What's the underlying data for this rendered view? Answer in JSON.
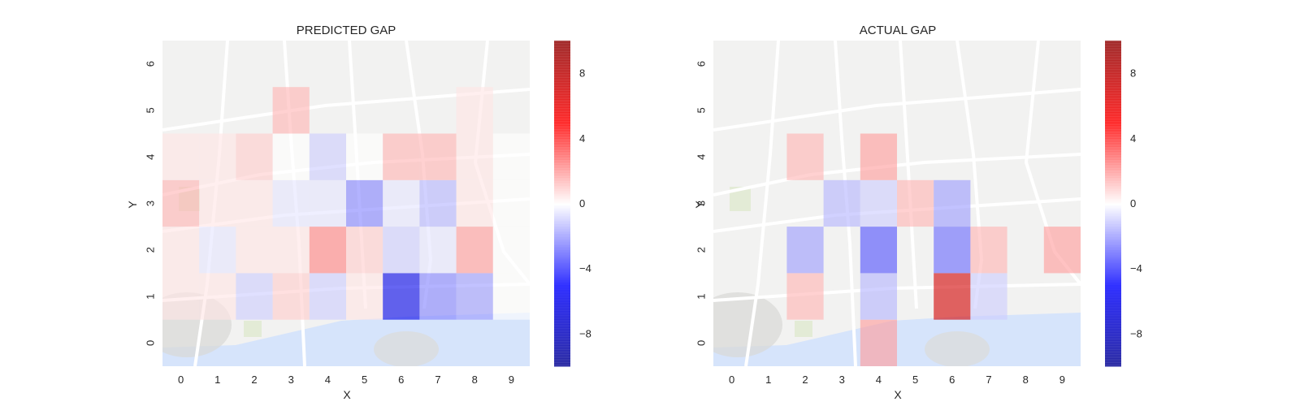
{
  "colors": {
    "map_background": "#f2f2f1",
    "map_water": "#d6e4fb",
    "map_road": "#ffffff",
    "colormap_low": "#00008f",
    "colormap_mid": "#ffffff",
    "colormap_high": "#8f0000"
  },
  "chart_data": [
    {
      "type": "heatmap",
      "title": "PREDICTED GAP",
      "xlabel": "X",
      "ylabel": "Y",
      "x_ticks": [
        "0",
        "1",
        "2",
        "3",
        "4",
        "5",
        "6",
        "7",
        "8",
        "9"
      ],
      "y_ticks": [
        "0",
        "1",
        "2",
        "3",
        "4",
        "5",
        "6"
      ],
      "colormap": "seismic",
      "vmin": -10,
      "vmax": 10,
      "colorbar_ticks": [
        "8",
        "4",
        "0",
        "−4",
        "−8"
      ],
      "colorbar_values": [
        8,
        4,
        0,
        -4,
        -8
      ],
      "background": "street map",
      "grid": false,
      "cells": [
        [
          0,
          1,
          0.5
        ],
        [
          1,
          1,
          0.5
        ],
        [
          2,
          1,
          -1
        ],
        [
          3,
          1,
          1
        ],
        [
          4,
          1,
          -1
        ],
        [
          5,
          1,
          0.5
        ],
        [
          6,
          1,
          -6
        ],
        [
          7,
          1,
          -2.5
        ],
        [
          8,
          1,
          -2
        ],
        [
          9,
          1,
          0
        ],
        [
          0,
          2,
          0.5
        ],
        [
          1,
          2,
          -0.5
        ],
        [
          2,
          2,
          0.5
        ],
        [
          3,
          2,
          0.5
        ],
        [
          4,
          2,
          2.5
        ],
        [
          5,
          2,
          1
        ],
        [
          6,
          2,
          -1
        ],
        [
          7,
          2,
          -0.5
        ],
        [
          8,
          2,
          2
        ],
        [
          9,
          2,
          0
        ],
        [
          0,
          3,
          1.5
        ],
        [
          1,
          3,
          0.5
        ],
        [
          2,
          3,
          0.5
        ],
        [
          3,
          3,
          -0.5
        ],
        [
          4,
          3,
          -0.5
        ],
        [
          5,
          3,
          -2.5
        ],
        [
          6,
          3,
          -0.5
        ],
        [
          7,
          3,
          -1.5
        ],
        [
          8,
          3,
          0.5
        ],
        [
          9,
          3,
          0
        ],
        [
          0,
          4,
          0.5
        ],
        [
          1,
          4,
          0.5
        ],
        [
          2,
          4,
          1
        ],
        [
          3,
          4,
          0
        ],
        [
          4,
          4,
          -1
        ],
        [
          5,
          4,
          0
        ],
        [
          6,
          4,
          1.5
        ],
        [
          7,
          4,
          1.5
        ],
        [
          8,
          4,
          0.5
        ],
        [
          9,
          4,
          0
        ],
        [
          3,
          5,
          1.5
        ],
        [
          8,
          5,
          0.5
        ]
      ]
    },
    {
      "type": "heatmap",
      "title": "ACTUAL GAP",
      "xlabel": "X",
      "ylabel": "Y",
      "x_ticks": [
        "0",
        "1",
        "2",
        "3",
        "4",
        "5",
        "6",
        "7",
        "8",
        "9"
      ],
      "y_ticks": [
        "0",
        "1",
        "2",
        "3",
        "4",
        "5",
        "6"
      ],
      "colormap": "seismic",
      "vmin": -10,
      "vmax": 10,
      "colorbar_ticks": [
        "8",
        "4",
        "0",
        "−4",
        "−8"
      ],
      "colorbar_values": [
        8,
        4,
        0,
        -4,
        -8
      ],
      "background": "street map",
      "grid": false,
      "cells": [
        [
          4,
          0,
          2
        ],
        [
          2,
          1,
          1.5
        ],
        [
          4,
          1,
          -1.5
        ],
        [
          6,
          1,
          7
        ],
        [
          7,
          1,
          -1
        ],
        [
          2,
          2,
          -2
        ],
        [
          4,
          2,
          -3.5
        ],
        [
          6,
          2,
          -3
        ],
        [
          7,
          2,
          1.5
        ],
        [
          9,
          2,
          2
        ],
        [
          3,
          3,
          -1.5
        ],
        [
          4,
          3,
          -1
        ],
        [
          5,
          3,
          1.5
        ],
        [
          6,
          3,
          -2
        ],
        [
          2,
          4,
          1.5
        ],
        [
          4,
          4,
          2
        ]
      ]
    }
  ]
}
